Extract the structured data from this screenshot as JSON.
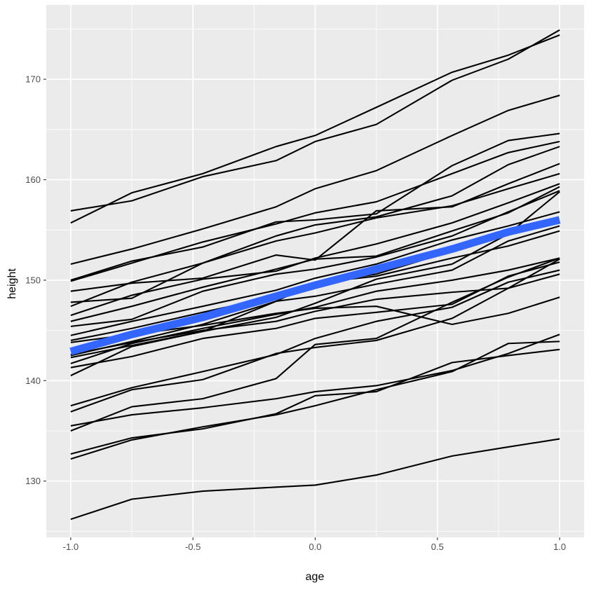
{
  "chart_data": {
    "type": "line",
    "title": "",
    "xlabel": "age",
    "ylabel": "height",
    "xlim": [
      -1.1,
      1.1
    ],
    "ylim": [
      124.4,
      177.4
    ],
    "x_ticks": [
      -1.0,
      -0.5,
      0.0,
      0.5,
      1.0
    ],
    "x_tick_labels": [
      "-1.0",
      "-0.5",
      "0.0",
      "0.5",
      "1.0"
    ],
    "y_ticks": [
      130,
      140,
      150,
      160,
      170
    ],
    "y_tick_labels": [
      "130",
      "140",
      "150",
      "160",
      "170"
    ],
    "grid": true,
    "legend": "none",
    "colors": {
      "panel_background": "#ebebeb",
      "grid_major": "#ffffff",
      "series_line": "#000000",
      "average_line": "#3366ff",
      "axis_text": "#4d4d4d",
      "axis_title": "#000000"
    },
    "series": [
      {
        "x": [
          -1,
          -0.75,
          -0.46,
          -0.16,
          0,
          0.25,
          0.56,
          0.79,
          1
        ],
        "values": [
          156.9,
          157.9,
          160.3,
          161.9,
          163.8,
          165.5,
          169.9,
          172.0,
          174.9
        ]
      },
      {
        "x": [
          -1,
          -0.75,
          -0.46,
          -0.16,
          0,
          0.25,
          0.56,
          0.79,
          1
        ],
        "values": [
          155.7,
          158.7,
          160.6,
          163.3,
          164.4,
          167.2,
          170.7,
          172.4,
          174.4
        ]
      },
      {
        "x": [
          -1,
          -0.75,
          -0.46,
          -0.16,
          0,
          0.25,
          0.56,
          0.79,
          1
        ],
        "values": [
          151.6,
          153.1,
          155.1,
          157.3,
          159.1,
          160.9,
          164.4,
          166.9,
          168.4
        ]
      },
      {
        "x": [
          -1,
          -0.75,
          -0.46,
          -0.16,
          0,
          0.25,
          0.56,
          0.79,
          1
        ],
        "values": [
          150.0,
          151.9,
          153.3,
          155.8,
          156.0,
          156.6,
          161.4,
          163.9,
          164.6
        ]
      },
      {
        "x": [
          -1,
          -0.75,
          -0.46,
          -0.16,
          0,
          0.25,
          0.56,
          0.79,
          1
        ],
        "values": [
          149.9,
          151.7,
          153.8,
          155.6,
          156.7,
          157.8,
          160.6,
          162.7,
          163.8
        ]
      },
      {
        "x": [
          -1,
          -0.75,
          -0.46,
          -0.16,
          0,
          0.25,
          0.56,
          0.79,
          1
        ],
        "values": [
          147.8,
          148.2,
          151.7,
          154.4,
          155.5,
          156.3,
          158.4,
          161.5,
          163.3
        ]
      },
      {
        "x": [
          -1,
          -0.75,
          -0.46,
          -0.16,
          0,
          0.25,
          0.56,
          0.79,
          1
        ],
        "values": [
          147.4,
          149.8,
          151.7,
          153.9,
          154.7,
          156.2,
          157.4,
          159.1,
          160.6
        ]
      },
      {
        "x": [
          -1,
          -0.75,
          -0.46,
          -0.16,
          0,
          0.25,
          0.56,
          0.79,
          1
        ],
        "values": [
          148.9,
          149.7,
          150.2,
          152.5,
          152.0,
          156.9,
          157.3,
          159.6,
          161.6
        ]
      },
      {
        "x": [
          -1,
          -0.75,
          -0.46,
          -0.16,
          0,
          0.25,
          0.56,
          0.79,
          1
        ],
        "values": [
          146.5,
          148.5,
          150.1,
          150.9,
          152.2,
          153.6,
          155.7,
          157.7,
          159.6
        ]
      },
      {
        "x": [
          -1,
          -0.75,
          -0.46,
          -0.16,
          0,
          0.25,
          0.56,
          0.79,
          1
        ],
        "values": [
          145.9,
          147.4,
          149.3,
          151.1,
          152.1,
          152.4,
          154.9,
          156.7,
          159.3
        ]
      },
      {
        "x": [
          -1,
          -0.75,
          -0.46,
          -0.16,
          0,
          0.25,
          0.56,
          0.79,
          1
        ],
        "values": [
          145.4,
          146.1,
          148.9,
          150.6,
          151.1,
          152.3,
          154.4,
          156.8,
          158.9
        ]
      },
      {
        "x": [
          -1,
          -0.75,
          -0.46,
          -0.16,
          0,
          0.25,
          0.56,
          0.79,
          1
        ],
        "values": [
          144.5,
          145.9,
          147.4,
          149.0,
          150.2,
          151.6,
          154.0,
          155.4,
          156.8
        ]
      },
      {
        "x": [
          -1,
          -0.75,
          -0.46,
          -0.16,
          0,
          0.25,
          0.56,
          0.79,
          1
        ],
        "values": [
          144.0,
          145.2,
          146.8,
          148.4,
          149.7,
          150.6,
          152.9,
          154.9,
          155.7
        ]
      },
      {
        "x": [
          -1,
          -0.75,
          -0.46,
          -0.16,
          0,
          0.25,
          0.56,
          0.79,
          1
        ],
        "values": [
          142.5,
          143.9,
          145.6,
          147.9,
          149.7,
          150.4,
          152.2,
          153.4,
          154.9
        ]
      },
      {
        "x": [
          -1,
          -0.75,
          -0.46,
          -0.16,
          0,
          0.25,
          0.56,
          0.79,
          1
        ],
        "values": [
          142.3,
          143.5,
          144.9,
          146.3,
          147.7,
          150.1,
          151.6,
          154.6,
          158.8
        ]
      },
      {
        "x": [
          -1,
          -0.75,
          -0.46,
          -0.16,
          0,
          0.25,
          0.56,
          0.79,
          1
        ],
        "values": [
          141.7,
          143.7,
          145.2,
          146.6,
          147.3,
          148.9,
          150.0,
          151.0,
          152.2
        ]
      },
      {
        "x": [
          -1,
          -0.75,
          -0.46,
          -0.16,
          0,
          0.25,
          0.56,
          0.79,
          1
        ],
        "values": [
          140.5,
          143.4,
          144.9,
          147.9,
          148.4,
          149.6,
          151.0,
          153.9,
          155.4
        ]
      },
      {
        "x": [
          -1,
          -0.75,
          -0.46,
          -0.16,
          0,
          0.25,
          0.56,
          0.79,
          1
        ],
        "values": [
          141.3,
          142.4,
          144.2,
          145.2,
          146.2,
          146.8,
          147.6,
          150.4,
          151.8
        ]
      },
      {
        "x": [
          -1,
          -0.75,
          -0.46,
          -0.16,
          0,
          0.25,
          0.56,
          0.79,
          1
        ],
        "values": [
          142.6,
          143.8,
          145.0,
          145.9,
          146.9,
          148.1,
          148.8,
          149.2,
          152.1
        ]
      },
      {
        "x": [
          -1,
          -0.75,
          -0.46,
          -0.16,
          0,
          0.25,
          0.56,
          0.79,
          1
        ],
        "values": [
          143.8,
          144.6,
          145.5,
          146.7,
          147.2,
          147.4,
          145.6,
          146.7,
          148.3
        ]
      },
      {
        "x": [
          -1,
          -0.75,
          -0.46,
          -0.16,
          0,
          0.25,
          0.56,
          0.79,
          1
        ],
        "values": [
          137.5,
          139.3,
          140.9,
          142.6,
          144.2,
          145.9,
          147.3,
          149.8,
          151.0
        ]
      },
      {
        "x": [
          -1,
          -0.75,
          -0.46,
          -0.16,
          0,
          0.25,
          0.56,
          0.79,
          1
        ],
        "values": [
          136.9,
          139.1,
          140.1,
          142.7,
          143.3,
          144.0,
          146.2,
          149.2,
          150.6
        ]
      },
      {
        "x": [
          -1,
          -0.75,
          -0.46,
          -0.16,
          0,
          0.25,
          0.56,
          0.79,
          1
        ],
        "values": [
          135.0,
          137.4,
          138.2,
          140.2,
          143.6,
          144.2,
          147.8,
          150.3,
          152.2
        ]
      },
      {
        "x": [
          -1,
          -0.75,
          -0.46,
          -0.16,
          0,
          0.25,
          0.56,
          0.79,
          1
        ],
        "values": [
          135.5,
          136.6,
          137.3,
          138.2,
          138.9,
          139.5,
          141.0,
          142.7,
          144.6
        ]
      },
      {
        "x": [
          -1,
          -0.75,
          -0.46,
          -0.16,
          0,
          0.25,
          0.56,
          0.79,
          1
        ],
        "values": [
          132.7,
          134.3,
          135.2,
          136.7,
          138.5,
          138.9,
          141.8,
          142.5,
          143.1
        ]
      },
      {
        "x": [
          -1,
          -0.75,
          -0.46,
          -0.16,
          0,
          0.25,
          0.56,
          0.79,
          1
        ],
        "values": [
          132.2,
          134.1,
          135.4,
          136.6,
          137.5,
          139.1,
          140.9,
          143.7,
          143.9
        ]
      },
      {
        "x": [
          -1,
          -0.75,
          -0.46,
          -0.16,
          0,
          0.25,
          0.56,
          0.79,
          1
        ],
        "values": [
          126.2,
          128.2,
          129.0,
          129.4,
          129.6,
          130.6,
          132.5,
          133.4,
          134.2
        ]
      }
    ],
    "average": {
      "x": [
        -1,
        -0.75,
        -0.46,
        -0.16,
        0,
        0.25,
        0.56,
        0.79,
        1
      ],
      "values": [
        142.9,
        144.6,
        146.3,
        148.4,
        149.5,
        151.1,
        153.1,
        154.8,
        156.0
      ]
    }
  }
}
